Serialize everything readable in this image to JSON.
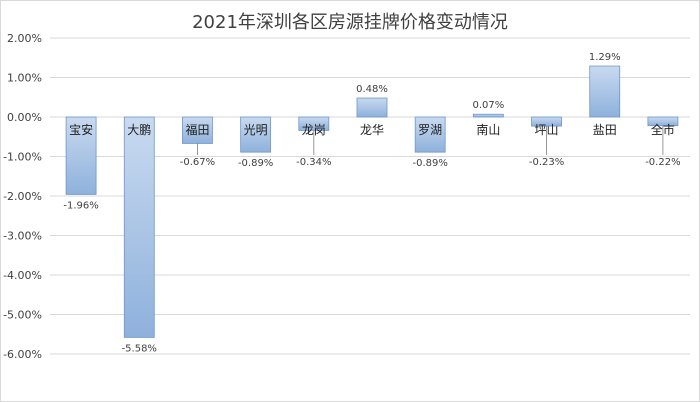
{
  "chart_data": {
    "type": "bar",
    "title": "2021年深圳各区房源挂牌价格变动情况",
    "categories": [
      "宝安",
      "大鹏",
      "福田",
      "光明",
      "龙岗",
      "龙华",
      "罗湖",
      "南山",
      "坪山",
      "盐田",
      "全市"
    ],
    "values": [
      -1.96,
      -5.58,
      -0.67,
      -0.89,
      -0.34,
      0.48,
      -0.89,
      0.07,
      -0.23,
      1.29,
      -0.22
    ],
    "data_labels": [
      "-1.96%",
      "-5.58%",
      "-0.67%",
      "-0.89%",
      "-0.34%",
      "0.48%",
      "-0.89%",
      "0.07%",
      "-0.23%",
      "1.29%",
      "-0.22%"
    ],
    "ylim": [
      -6,
      2
    ],
    "yticks": [
      2,
      1,
      0,
      -1,
      -2,
      -3,
      -4,
      -5,
      -6
    ],
    "ytick_labels": [
      "2.00%",
      "1.00%",
      "0.00%",
      "-1.00%",
      "-2.00%",
      "-3.00%",
      "-4.00%",
      "-5.00%",
      "-6.00%"
    ],
    "grid": true,
    "legend": "none",
    "colors": {
      "bar_top": "#c9daf0",
      "bar_bottom": "#8eb1dc",
      "bar_stroke": "#6f96c9",
      "grid": "#d9d9d9"
    }
  }
}
